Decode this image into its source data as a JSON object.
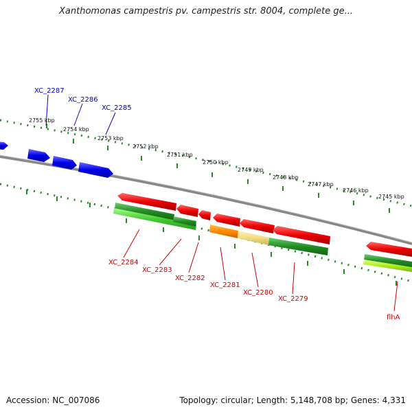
{
  "header": {
    "title": "Xanthomonas campestris pv. campestris str. 8004, complete ge..."
  },
  "footer": {
    "accession": "Accession: NC_007086",
    "summary": "Topology: circular; Length: 5,148,708 bp; Genes: 4,331"
  },
  "ruler": {
    "ticks": [
      "2755 kbp",
      "2754 kbp",
      "2753 kbp",
      "2752 kbp",
      "2751 kbp",
      "2750 kbp",
      "2749 kbp",
      "2748 kbp",
      "2747 kbp",
      "2746 kbp",
      "2745 kbp"
    ]
  },
  "genes_forward": [
    {
      "name": "XC_2287",
      "color": "#0000ee"
    },
    {
      "name": "XC_2286",
      "color": "#0000ee"
    },
    {
      "name": "XC_2285",
      "color": "#0000ee"
    }
  ],
  "genes_reverse": [
    {
      "name": "XC_2284",
      "color": "#ee0000"
    },
    {
      "name": "XC_2283",
      "color": "#ee0000"
    },
    {
      "name": "XC_2282",
      "color": "#ee0000"
    },
    {
      "name": "XC_2281",
      "color": "#ee0000"
    },
    {
      "name": "XC_2280",
      "color": "#ee0000"
    },
    {
      "name": "XC_2279",
      "color": "#ee0000"
    },
    {
      "name": "flhA",
      "color": "#ee0000"
    }
  ],
  "colors": {
    "forward_gene": "#1010ee",
    "reverse_gene": "#ee1010",
    "backbone": "#888888",
    "ruler_dots": "#228b22"
  }
}
